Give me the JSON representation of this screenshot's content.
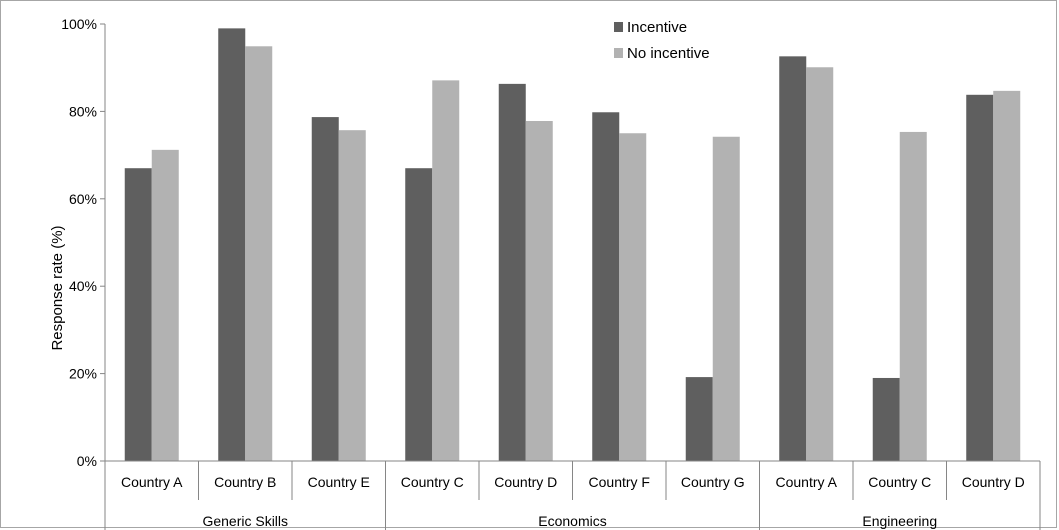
{
  "chart_data": {
    "type": "bar",
    "ylabel": "Response rate (%)",
    "ylim": [
      0,
      100
    ],
    "y_ticks": [
      "0%",
      "20%",
      "40%",
      "60%",
      "80%",
      "100%"
    ],
    "grid": false,
    "legend_position": "top-right",
    "groups": [
      {
        "name": "Generic Skills",
        "categories": [
          "Country A",
          "Country B",
          "Country E"
        ]
      },
      {
        "name": "Economics",
        "categories": [
          "Country C",
          "Country D",
          "Country F",
          "Country G"
        ]
      },
      {
        "name": "Engineering",
        "categories": [
          "Country A",
          "Country C",
          "Country D"
        ]
      }
    ],
    "categories": [
      "Country A",
      "Country B",
      "Country E",
      "Country C",
      "Country D",
      "Country F",
      "Country G",
      "Country A",
      "Country C",
      "Country D"
    ],
    "series": [
      {
        "name": "Incentive",
        "color": "#5f5f5f",
        "values": [
          67,
          99,
          78.7,
          67,
          86.3,
          79.8,
          19.2,
          92.6,
          19,
          83.8
        ]
      },
      {
        "name": "No incentive",
        "color": "#b2b2b2",
        "values": [
          71.2,
          94.9,
          75.7,
          87.1,
          77.8,
          75,
          74.2,
          90.1,
          75.3,
          84.7
        ]
      }
    ]
  }
}
